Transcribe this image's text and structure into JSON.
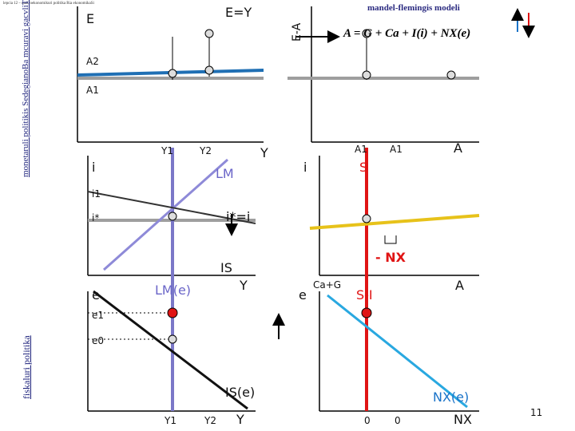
{
  "header": {
    "breadcrumb": "lepcia 12 – makroekonomikuri politika Ria ekonomikaSi"
  },
  "side": {
    "upper": "monetaruli politikis SedegianoBa mcuravi gacvliTi kursis pirobebSi",
    "lower": "fiskaluri politika"
  },
  "title": "mandel-flemingis modeli",
  "formula": "A = G + Ca + I(i) + NX(e)",
  "top_left": {
    "e_label": "E",
    "eq_label": "E=Y",
    "a2": "A2",
    "a1": "A1",
    "y1": "Y1",
    "y2": "Y2",
    "y": "Y"
  },
  "top_right": {
    "axis": "E-A",
    "a1a": "A1",
    "a1b": "A1",
    "a": "A"
  },
  "mid_left": {
    "i": "i",
    "lm": "LM",
    "i1": "i1",
    "istar": "i*",
    "eq": "i*=i",
    "is": "IS",
    "y": "Y"
  },
  "mid_right": {
    "i": "i",
    "s": "S",
    "nx": "- NX"
  },
  "bot_left": {
    "e": "e",
    "lme": "LM(e)",
    "e1": "e1",
    "e0": "e0",
    "ise": "IS(e)",
    "y1": "Y1",
    "y2": "Y2",
    "y": "Y"
  },
  "bot_right": {
    "e": "e",
    "cag": "Ca+G",
    "si": "S-I",
    "a": "A",
    "nxe": "NX(e)",
    "zero1": "0",
    "zero2": "0",
    "nx": "NX"
  },
  "page_number": "11"
}
